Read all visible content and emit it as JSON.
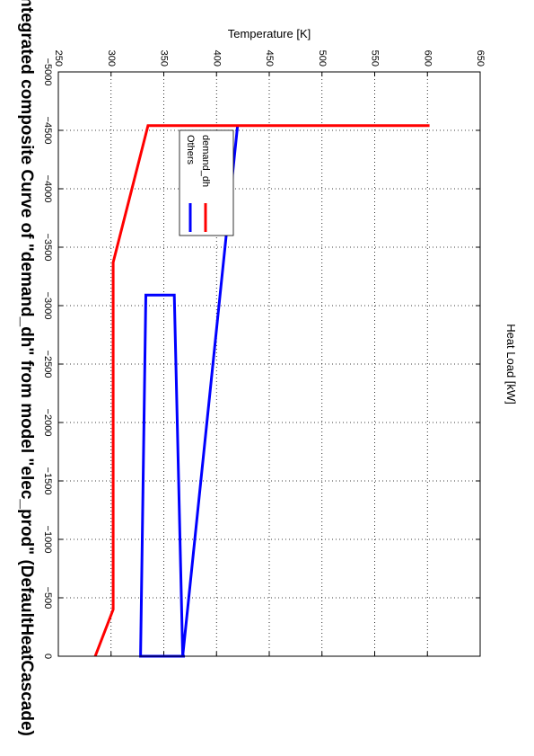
{
  "chart_data": {
    "type": "line",
    "title": "Integrated composite Curve of \"demand_dh\" from model \"elec_prod\" (DefaultHeatCascade)",
    "xlabel": "Heat Load [kW]",
    "ylabel": "Temperature [K]",
    "xlim": [
      -5000,
      0
    ],
    "ylim": [
      250,
      650
    ],
    "xticks": [
      0,
      -500,
      -1000,
      -1500,
      -2000,
      -2500,
      -3000,
      -3500,
      -4000,
      -4500,
      -5000
    ],
    "xtick_labels": [
      "0",
      "−500",
      "−1000",
      "−1500",
      "−2000",
      "−2500",
      "−3000",
      "−3500",
      "−4000",
      "−4500",
      "−5000"
    ],
    "yticks": [
      250,
      300,
      350,
      400,
      450,
      500,
      550,
      600,
      650
    ],
    "ytick_labels": [
      "250",
      "300",
      "350",
      "400",
      "450",
      "500",
      "550",
      "600",
      "650"
    ],
    "grid": true,
    "legend_position": "upper-right",
    "rotated": "90deg-clockwise",
    "series": [
      {
        "name": "Others",
        "color": "#0000ff",
        "points": [
          [
            0,
            328
          ],
          [
            0,
            370
          ],
          [
            0,
            328
          ],
          [
            -3090,
            333
          ],
          [
            -3090,
            360
          ],
          [
            0,
            368
          ],
          [
            -4540,
            420
          ]
        ]
      },
      {
        "name": "demand_dh",
        "color": "#ff0000",
        "points": [
          [
            0,
            285
          ],
          [
            -400,
            302
          ],
          [
            -3370,
            302
          ],
          [
            -4540,
            335
          ],
          [
            -4540,
            602
          ]
        ]
      }
    ]
  }
}
